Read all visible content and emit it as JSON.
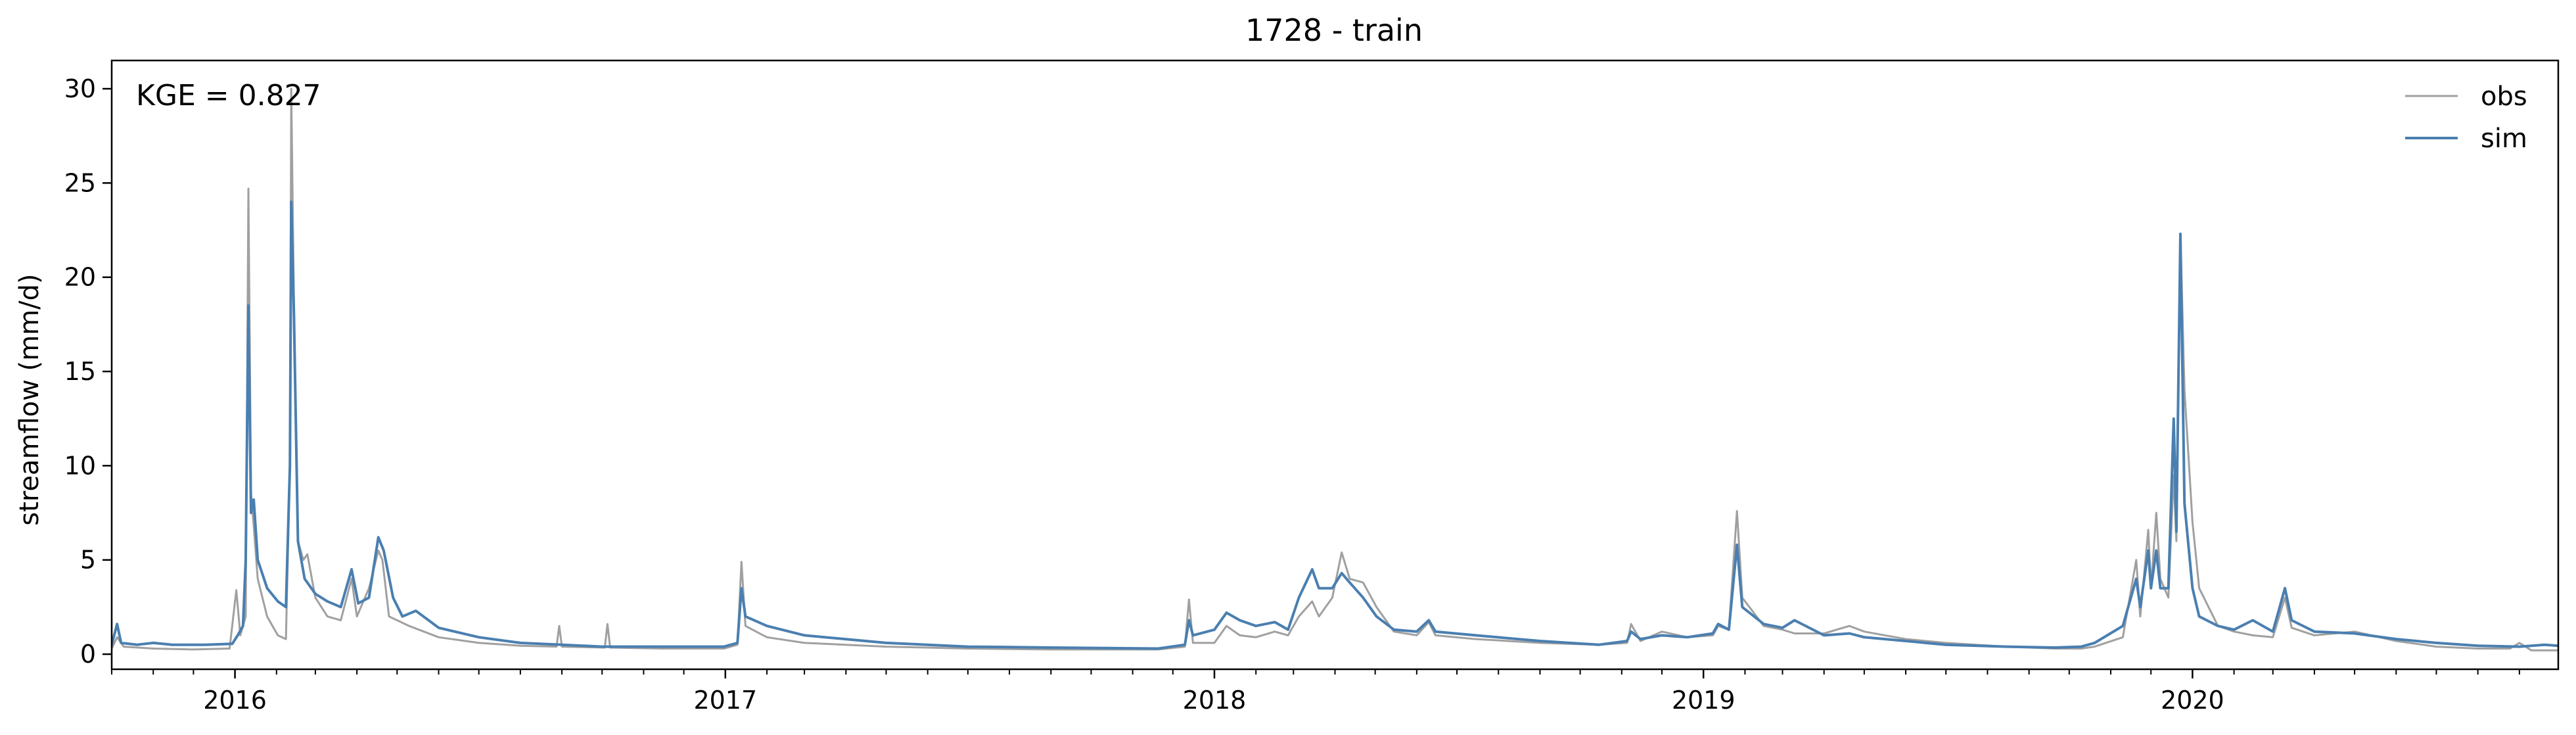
{
  "chart_data": {
    "type": "line",
    "title": "1728 - train",
    "xlabel": "",
    "ylabel": "streamflow (mm/d)",
    "annotation": "KGE = 0.827",
    "xlim": [
      "2015-10-01",
      "2020-09-30"
    ],
    "ylim": [
      -0.8,
      31.5
    ],
    "y_ticks": [
      0,
      5,
      10,
      15,
      20,
      25,
      30
    ],
    "x_ticks": [
      {
        "date": "2016-01-01",
        "label": "2016"
      },
      {
        "date": "2017-01-01",
        "label": "2017"
      },
      {
        "date": "2018-01-01",
        "label": "2018"
      },
      {
        "date": "2019-01-01",
        "label": "2019"
      },
      {
        "date": "2020-01-01",
        "label": "2020"
      }
    ],
    "grid": false,
    "legend_position": "top-right",
    "series": [
      {
        "name": "obs",
        "color": "#a0a0a0",
        "points": [
          [
            "2015-10-01",
            0.3
          ],
          [
            "2015-10-05",
            0.9
          ],
          [
            "2015-10-10",
            0.4
          ],
          [
            "2015-11-01",
            0.3
          ],
          [
            "2015-12-01",
            0.25
          ],
          [
            "2015-12-28",
            0.3
          ],
          [
            "2016-01-02",
            3.4
          ],
          [
            "2016-01-05",
            1.0
          ],
          [
            "2016-01-09",
            2.0
          ],
          [
            "2016-01-11",
            24.7
          ],
          [
            "2016-01-13",
            8.5
          ],
          [
            "2016-01-15",
            6.8
          ],
          [
            "2016-01-18",
            4.0
          ],
          [
            "2016-01-25",
            2.0
          ],
          [
            "2016-02-02",
            1.0
          ],
          [
            "2016-02-08",
            0.8
          ],
          [
            "2016-02-11",
            10.0
          ],
          [
            "2016-02-12",
            30.0
          ],
          [
            "2016-02-14",
            18.5
          ],
          [
            "2016-02-17",
            6.0
          ],
          [
            "2016-02-21",
            5.0
          ],
          [
            "2016-02-24",
            5.3
          ],
          [
            "2016-03-01",
            3.0
          ],
          [
            "2016-03-10",
            2.0
          ],
          [
            "2016-03-20",
            1.8
          ],
          [
            "2016-03-28",
            4.0
          ],
          [
            "2016-04-01",
            2.0
          ],
          [
            "2016-04-10",
            3.5
          ],
          [
            "2016-04-17",
            5.5
          ],
          [
            "2016-04-20",
            5.0
          ],
          [
            "2016-04-25",
            2.0
          ],
          [
            "2016-05-10",
            1.5
          ],
          [
            "2016-06-01",
            0.9
          ],
          [
            "2016-07-01",
            0.6
          ],
          [
            "2016-08-01",
            0.45
          ],
          [
            "2016-08-28",
            0.4
          ],
          [
            "2016-08-30",
            1.5
          ],
          [
            "2016-09-01",
            0.4
          ],
          [
            "2016-10-03",
            0.35
          ],
          [
            "2016-10-05",
            1.6
          ],
          [
            "2016-10-07",
            0.35
          ],
          [
            "2016-11-15",
            0.3
          ],
          [
            "2016-12-31",
            0.3
          ],
          [
            "2017-01-10",
            0.5
          ],
          [
            "2017-01-13",
            4.9
          ],
          [
            "2017-01-16",
            1.5
          ],
          [
            "2017-02-01",
            0.9
          ],
          [
            "2017-03-01",
            0.6
          ],
          [
            "2017-05-01",
            0.4
          ],
          [
            "2017-07-01",
            0.3
          ],
          [
            "2017-09-01",
            0.25
          ],
          [
            "2017-11-20",
            0.25
          ],
          [
            "2017-12-10",
            0.4
          ],
          [
            "2017-12-13",
            2.9
          ],
          [
            "2017-12-16",
            0.6
          ],
          [
            "2018-01-01",
            0.6
          ],
          [
            "2018-01-10",
            1.5
          ],
          [
            "2018-01-20",
            1.0
          ],
          [
            "2018-02-01",
            0.9
          ],
          [
            "2018-02-15",
            1.2
          ],
          [
            "2018-02-25",
            1.0
          ],
          [
            "2018-03-05",
            2.0
          ],
          [
            "2018-03-15",
            2.8
          ],
          [
            "2018-03-20",
            2.0
          ],
          [
            "2018-03-30",
            3.0
          ],
          [
            "2018-04-06",
            5.4
          ],
          [
            "2018-04-12",
            4.0
          ],
          [
            "2018-04-22",
            3.8
          ],
          [
            "2018-05-02",
            2.5
          ],
          [
            "2018-05-15",
            1.2
          ],
          [
            "2018-06-01",
            1.0
          ],
          [
            "2018-06-10",
            1.7
          ],
          [
            "2018-06-15",
            1.0
          ],
          [
            "2018-07-15",
            0.8
          ],
          [
            "2018-09-01",
            0.6
          ],
          [
            "2018-10-15",
            0.5
          ],
          [
            "2018-11-05",
            0.6
          ],
          [
            "2018-11-08",
            1.6
          ],
          [
            "2018-11-15",
            0.7
          ],
          [
            "2018-12-01",
            1.2
          ],
          [
            "2018-12-20",
            0.9
          ],
          [
            "2019-01-08",
            1.0
          ],
          [
            "2019-01-12",
            1.5
          ],
          [
            "2019-01-20",
            1.3
          ],
          [
            "2019-01-26",
            7.6
          ],
          [
            "2019-01-30",
            3.0
          ],
          [
            "2019-02-15",
            1.5
          ],
          [
            "2019-03-01",
            1.3
          ],
          [
            "2019-03-10",
            1.1
          ],
          [
            "2019-04-01",
            1.1
          ],
          [
            "2019-04-20",
            1.5
          ],
          [
            "2019-05-01",
            1.2
          ],
          [
            "2019-06-01",
            0.8
          ],
          [
            "2019-07-01",
            0.6
          ],
          [
            "2019-08-15",
            0.4
          ],
          [
            "2019-09-20",
            0.3
          ],
          [
            "2019-10-10",
            0.3
          ],
          [
            "2019-10-20",
            0.4
          ],
          [
            "2019-11-10",
            0.9
          ],
          [
            "2019-11-20",
            5.0
          ],
          [
            "2019-11-23",
            2.0
          ],
          [
            "2019-11-29",
            6.6
          ],
          [
            "2019-12-01",
            3.5
          ],
          [
            "2019-12-05",
            7.5
          ],
          [
            "2019-12-08",
            4.0
          ],
          [
            "2019-12-14",
            3.0
          ],
          [
            "2019-12-18",
            9.5
          ],
          [
            "2019-12-20",
            6.0
          ],
          [
            "2019-12-23",
            22.3
          ],
          [
            "2019-12-26",
            14.0
          ],
          [
            "2020-01-01",
            7.0
          ],
          [
            "2020-01-06",
            3.5
          ],
          [
            "2020-01-20",
            1.5
          ],
          [
            "2020-02-01",
            1.2
          ],
          [
            "2020-02-15",
            1.0
          ],
          [
            "2020-03-01",
            0.9
          ],
          [
            "2020-03-10",
            3.0
          ],
          [
            "2020-03-15",
            1.4
          ],
          [
            "2020-04-01",
            1.0
          ],
          [
            "2020-05-01",
            1.2
          ],
          [
            "2020-06-01",
            0.7
          ],
          [
            "2020-07-01",
            0.4
          ],
          [
            "2020-08-01",
            0.3
          ],
          [
            "2020-08-25",
            0.3
          ],
          [
            "2020-09-01",
            0.6
          ],
          [
            "2020-09-10",
            0.2
          ],
          [
            "2020-09-30",
            0.2
          ]
        ]
      },
      {
        "name": "sim",
        "color": "#4a7fb0",
        "points": [
          [
            "2015-10-01",
            0.5
          ],
          [
            "2015-10-05",
            1.6
          ],
          [
            "2015-10-08",
            0.6
          ],
          [
            "2015-10-20",
            0.5
          ],
          [
            "2015-11-01",
            0.6
          ],
          [
            "2015-11-15",
            0.5
          ],
          [
            "2015-12-10",
            0.5
          ],
          [
            "2015-12-30",
            0.55
          ],
          [
            "2016-01-03",
            1.0
          ],
          [
            "2016-01-07",
            1.5
          ],
          [
            "2016-01-09",
            5.0
          ],
          [
            "2016-01-11",
            18.5
          ],
          [
            "2016-01-13",
            7.5
          ],
          [
            "2016-01-15",
            8.2
          ],
          [
            "2016-01-18",
            5.0
          ],
          [
            "2016-01-25",
            3.5
          ],
          [
            "2016-02-02",
            2.8
          ],
          [
            "2016-02-08",
            2.5
          ],
          [
            "2016-02-11",
            10.0
          ],
          [
            "2016-02-12",
            24.0
          ],
          [
            "2016-02-14",
            18.0
          ],
          [
            "2016-02-17",
            6.0
          ],
          [
            "2016-02-22",
            4.0
          ],
          [
            "2016-03-01",
            3.2
          ],
          [
            "2016-03-10",
            2.8
          ],
          [
            "2016-03-20",
            2.5
          ],
          [
            "2016-03-28",
            4.5
          ],
          [
            "2016-04-02",
            2.7
          ],
          [
            "2016-04-10",
            3.0
          ],
          [
            "2016-04-17",
            6.2
          ],
          [
            "2016-04-21",
            5.5
          ],
          [
            "2016-04-28",
            3.0
          ],
          [
            "2016-05-05",
            2.0
          ],
          [
            "2016-05-15",
            2.3
          ],
          [
            "2016-06-01",
            1.4
          ],
          [
            "2016-07-01",
            0.9
          ],
          [
            "2016-08-01",
            0.6
          ],
          [
            "2016-09-01",
            0.5
          ],
          [
            "2016-10-01",
            0.4
          ],
          [
            "2016-11-15",
            0.4
          ],
          [
            "2016-12-31",
            0.4
          ],
          [
            "2017-01-10",
            0.6
          ],
          [
            "2017-01-13",
            3.5
          ],
          [
            "2017-01-16",
            2.0
          ],
          [
            "2017-02-01",
            1.5
          ],
          [
            "2017-03-01",
            1.0
          ],
          [
            "2017-05-01",
            0.6
          ],
          [
            "2017-07-01",
            0.4
          ],
          [
            "2017-09-01",
            0.35
          ],
          [
            "2017-11-20",
            0.3
          ],
          [
            "2017-12-10",
            0.5
          ],
          [
            "2017-12-13",
            1.8
          ],
          [
            "2017-12-16",
            1.0
          ],
          [
            "2018-01-01",
            1.3
          ],
          [
            "2018-01-10",
            2.2
          ],
          [
            "2018-01-20",
            1.8
          ],
          [
            "2018-02-01",
            1.5
          ],
          [
            "2018-02-15",
            1.7
          ],
          [
            "2018-02-25",
            1.3
          ],
          [
            "2018-03-05",
            3.0
          ],
          [
            "2018-03-15",
            4.5
          ],
          [
            "2018-03-20",
            3.5
          ],
          [
            "2018-03-30",
            3.5
          ],
          [
            "2018-04-06",
            4.3
          ],
          [
            "2018-04-12",
            3.8
          ],
          [
            "2018-04-22",
            3.0
          ],
          [
            "2018-05-02",
            2.0
          ],
          [
            "2018-05-15",
            1.3
          ],
          [
            "2018-06-01",
            1.2
          ],
          [
            "2018-06-10",
            1.8
          ],
          [
            "2018-06-15",
            1.2
          ],
          [
            "2018-07-15",
            1.0
          ],
          [
            "2018-09-01",
            0.7
          ],
          [
            "2018-10-15",
            0.5
          ],
          [
            "2018-11-05",
            0.7
          ],
          [
            "2018-11-08",
            1.2
          ],
          [
            "2018-11-15",
            0.8
          ],
          [
            "2018-12-01",
            1.0
          ],
          [
            "2018-12-20",
            0.9
          ],
          [
            "2019-01-08",
            1.1
          ],
          [
            "2019-01-12",
            1.6
          ],
          [
            "2019-01-20",
            1.3
          ],
          [
            "2019-01-26",
            5.8
          ],
          [
            "2019-01-30",
            2.5
          ],
          [
            "2019-02-15",
            1.6
          ],
          [
            "2019-03-01",
            1.4
          ],
          [
            "2019-03-10",
            1.8
          ],
          [
            "2019-04-01",
            1.0
          ],
          [
            "2019-04-20",
            1.1
          ],
          [
            "2019-05-01",
            0.9
          ],
          [
            "2019-06-01",
            0.7
          ],
          [
            "2019-07-01",
            0.5
          ],
          [
            "2019-08-15",
            0.4
          ],
          [
            "2019-09-20",
            0.35
          ],
          [
            "2019-10-10",
            0.4
          ],
          [
            "2019-10-20",
            0.6
          ],
          [
            "2019-11-10",
            1.5
          ],
          [
            "2019-11-20",
            4.0
          ],
          [
            "2019-11-23",
            2.5
          ],
          [
            "2019-11-29",
            5.5
          ],
          [
            "2019-12-01",
            3.5
          ],
          [
            "2019-12-05",
            5.5
          ],
          [
            "2019-12-08",
            3.5
          ],
          [
            "2019-12-14",
            3.5
          ],
          [
            "2019-12-18",
            12.5
          ],
          [
            "2019-12-20",
            6.5
          ],
          [
            "2019-12-23",
            22.3
          ],
          [
            "2019-12-26",
            8.0
          ],
          [
            "2020-01-01",
            3.5
          ],
          [
            "2020-01-06",
            2.0
          ],
          [
            "2020-01-20",
            1.5
          ],
          [
            "2020-02-01",
            1.3
          ],
          [
            "2020-02-15",
            1.8
          ],
          [
            "2020-03-01",
            1.2
          ],
          [
            "2020-03-10",
            3.5
          ],
          [
            "2020-03-15",
            1.8
          ],
          [
            "2020-04-01",
            1.2
          ],
          [
            "2020-05-01",
            1.1
          ],
          [
            "2020-06-01",
            0.8
          ],
          [
            "2020-07-01",
            0.6
          ],
          [
            "2020-08-01",
            0.45
          ],
          [
            "2020-09-01",
            0.4
          ],
          [
            "2020-09-20",
            0.5
          ],
          [
            "2020-09-30",
            0.45
          ]
        ]
      }
    ]
  }
}
